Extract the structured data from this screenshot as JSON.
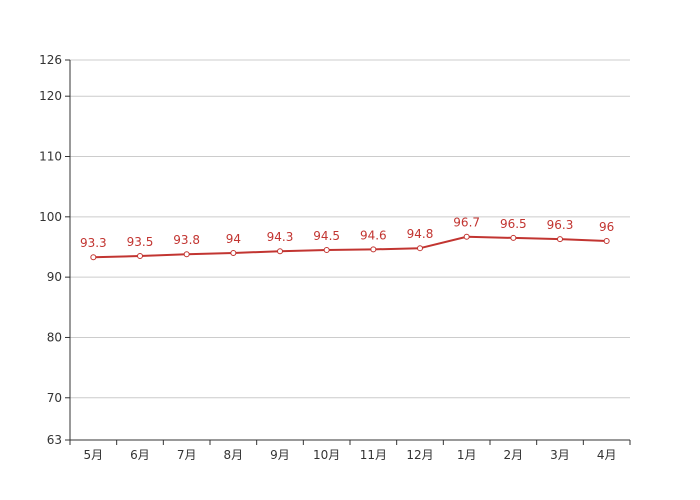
{
  "colors": {
    "series": "#c23531",
    "grid": "#cccccc",
    "axis": "#333333",
    "background": "#ffffff"
  },
  "chart_data": {
    "type": "line",
    "title": "",
    "xlabel": "",
    "ylabel": "",
    "categories": [
      "5月",
      "6月",
      "7月",
      "8月",
      "9月",
      "10月",
      "11月",
      "12月",
      "1月",
      "2月",
      "3月",
      "4月"
    ],
    "series": [
      {
        "values": [
          93.3,
          93.5,
          93.8,
          94,
          94.3,
          94.5,
          94.6,
          94.8,
          96.7,
          96.5,
          96.3,
          96
        ],
        "labels": [
          "93.3",
          "93.5",
          "93.8",
          "94",
          "94.3",
          "94.5",
          "94.6",
          "94.8",
          "96.7",
          "96.5",
          "96.3",
          "96"
        ]
      }
    ],
    "ylim": [
      63,
      126
    ],
    "yticks": [
      63,
      70,
      80,
      90,
      100,
      110,
      120,
      126
    ],
    "ytick_labels": [
      "63",
      "70",
      "80",
      "90",
      "100",
      "110",
      "120",
      "126"
    ],
    "grid": true,
    "legend": "none"
  }
}
